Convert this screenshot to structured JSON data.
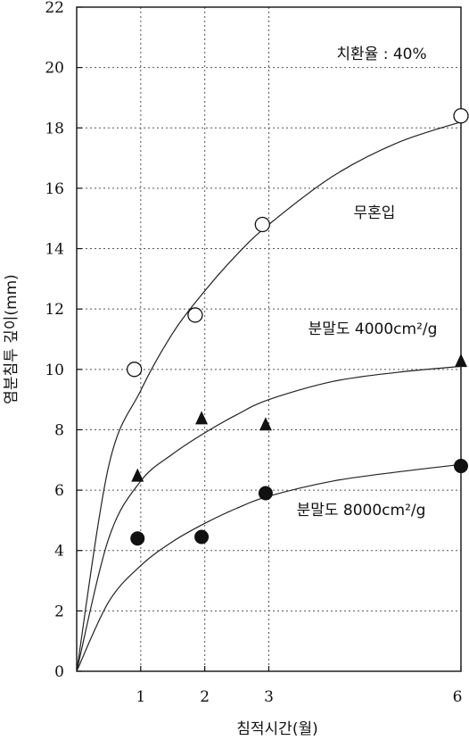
{
  "chart_data": {
    "type": "scatter",
    "xlabel": "침적시간(월)",
    "ylabel": "염분침투 깊이(mm)",
    "xlim": [
      0,
      6
    ],
    "ylim": [
      0,
      22
    ],
    "x_ticks": [
      1,
      2,
      3,
      6
    ],
    "y_ticks": [
      0,
      2,
      4,
      6,
      8,
      10,
      12,
      14,
      16,
      18,
      20,
      22
    ],
    "grid": true,
    "annotations": [
      "치환율 : 40%",
      "무혼입",
      "분말도 4000cm²/g",
      "분말도 8000cm²/g"
    ],
    "series": [
      {
        "marker": "open-circle",
        "x": [
          0.9,
          1.85,
          2.9,
          6.0
        ],
        "y": [
          10.0,
          11.8,
          14.8,
          18.4
        ],
        "fit": [
          [
            0,
            0
          ],
          [
            0.5,
            6.8
          ],
          [
            1,
            9.3
          ],
          [
            1.5,
            11.2
          ],
          [
            2,
            12.6
          ],
          [
            2.5,
            13.8
          ],
          [
            3,
            14.8
          ],
          [
            4,
            16.4
          ],
          [
            5,
            17.5
          ],
          [
            6,
            18.2
          ]
        ]
      },
      {
        "marker": "filled-triangle",
        "x": [
          0.95,
          1.95,
          2.95,
          6.0
        ],
        "y": [
          6.5,
          8.4,
          8.2,
          10.3
        ],
        "fit": [
          [
            0,
            0
          ],
          [
            0.5,
            4.4
          ],
          [
            1,
            6.3
          ],
          [
            1.5,
            7.2
          ],
          [
            2,
            7.9
          ],
          [
            2.5,
            8.5
          ],
          [
            3,
            9.0
          ],
          [
            4,
            9.6
          ],
          [
            5,
            9.9
          ],
          [
            6,
            10.1
          ]
        ]
      },
      {
        "marker": "filled-circle",
        "x": [
          0.95,
          1.95,
          2.95,
          6.0
        ],
        "y": [
          4.4,
          4.45,
          5.9,
          6.8
        ],
        "fit": [
          [
            0,
            0
          ],
          [
            0.5,
            2.3
          ],
          [
            1,
            3.5
          ],
          [
            1.5,
            4.3
          ],
          [
            2,
            4.9
          ],
          [
            2.5,
            5.4
          ],
          [
            3,
            5.8
          ],
          [
            4,
            6.3
          ],
          [
            5,
            6.6
          ],
          [
            6,
            6.85
          ]
        ]
      }
    ]
  }
}
